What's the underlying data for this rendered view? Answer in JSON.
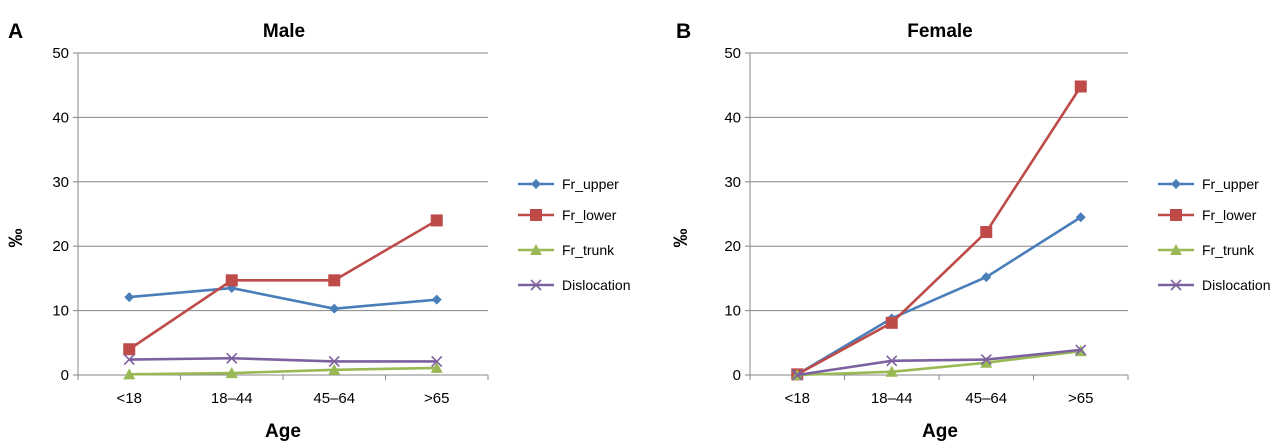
{
  "chart_data": [
    {
      "type": "line",
      "panel": "A",
      "title": "Male",
      "xlabel": "Age",
      "ylabel": "‰",
      "categories": [
        "<18",
        "18–44",
        "45–64",
        ">65"
      ],
      "ylim": [
        0,
        50
      ],
      "yticks": [
        0,
        10,
        20,
        30,
        40,
        50
      ],
      "grid": true,
      "legend": "right",
      "series": [
        {
          "name": "Fr_upper",
          "color": "#4a7ebb",
          "marker": "diamond",
          "values": [
            12.1,
            13.5,
            10.3,
            11.7
          ]
        },
        {
          "name": "Fr_lower",
          "color": "#be4b48",
          "marker": "square",
          "values": [
            4.0,
            14.7,
            14.7,
            24.0
          ]
        },
        {
          "name": "Fr_trunk",
          "color": "#98b954",
          "marker": "triangle",
          "values": [
            0.1,
            0.3,
            0.8,
            1.1
          ]
        },
        {
          "name": "Dislocation",
          "color": "#7d60a0",
          "marker": "x",
          "values": [
            2.4,
            2.6,
            2.1,
            2.1
          ]
        }
      ]
    },
    {
      "type": "line",
      "panel": "B",
      "title": "Female",
      "xlabel": "Age",
      "ylabel": "‰",
      "categories": [
        "<18",
        "18–44",
        "45–64",
        ">65"
      ],
      "ylim": [
        0,
        50
      ],
      "yticks": [
        0,
        10,
        20,
        30,
        40,
        50
      ],
      "grid": true,
      "legend": "right",
      "series": [
        {
          "name": "Fr_upper",
          "color": "#4a7ebb",
          "marker": "diamond",
          "values": [
            0.1,
            8.8,
            15.2,
            24.5
          ]
        },
        {
          "name": "Fr_lower",
          "color": "#be4b48",
          "marker": "square",
          "values": [
            0.1,
            8.1,
            22.2,
            44.8
          ]
        },
        {
          "name": "Fr_trunk",
          "color": "#98b954",
          "marker": "triangle",
          "values": [
            0.0,
            0.5,
            1.9,
            3.7
          ]
        },
        {
          "name": "Dislocation",
          "color": "#7d60a0",
          "marker": "x",
          "values": [
            0.0,
            2.2,
            2.4,
            3.9
          ]
        }
      ]
    }
  ]
}
